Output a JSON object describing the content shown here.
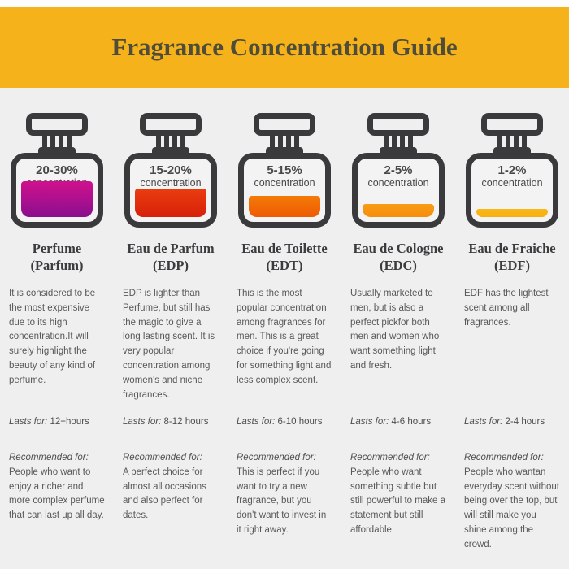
{
  "title": "Fragrance Concentration Guide",
  "theme": {
    "banner_bg": "#f5b21a",
    "banner_text": "#4f4d3a",
    "page_bg": "#efeff0",
    "bottle_outline": "#3a3a3c"
  },
  "labels": {
    "concentration": "concentration",
    "lasts_for": "Lasts for:",
    "recommended_for": "Recommended for:"
  },
  "fragrances": [
    {
      "name": "Perfume",
      "abbr": "(Parfum)",
      "concentration": "20-30%",
      "description": "It is considered to be the most expensive due to its high concentration.It will surely highlight the beauty of any kind of perfume.",
      "lasts": "12+hours",
      "recommended": "People who want to enjoy a richer and more complex perfume that can last up all day.",
      "fill_top": "#d1108d",
      "fill_bottom": "#8a0f8e",
      "fill_height": 44
    },
    {
      "name": "Eau de Parfum",
      "abbr": "(EDP)",
      "concentration": "15-20%",
      "description": "EDP is lighter than Perfume, but still has the magic to give a long lasting scent. It is very popular concentration among women's and niche fragrances.",
      "lasts": "8-12 hours",
      "recommended": "A perfect choice for almost all occasions and also perfect for dates.",
      "fill_top": "#ea3d0f",
      "fill_bottom": "#d62109",
      "fill_height": 35
    },
    {
      "name": "Eau de Toilette",
      "abbr": "(EDT)",
      "concentration": "5-15%",
      "description": "This is the most popular concentration among fragrances for men. This is a great choice if you're going for something light and less complex scent.",
      "lasts": "6-10 hours",
      "recommended": "This is perfect if you want to try a new fragrance, but you don't want to invest in it right away.",
      "fill_top": "#f57a06",
      "fill_bottom": "#ee5a05",
      "fill_height": 26
    },
    {
      "name": "Eau de Cologne",
      "abbr": "(EDC)",
      "concentration": "2-5%",
      "description": "Usually marketed to men, but is also a perfect pickfor both men and women who want something light and fresh.",
      "lasts": "4-6 hours",
      "recommended": "People who want something subtle but still powerful to make a statement but still affordable.",
      "fill_top": "#f89c12",
      "fill_bottom": "#f68d0e",
      "fill_height": 16
    },
    {
      "name": "Eau de Fraiche",
      "abbr": "(EDF)",
      "concentration": "1-2%",
      "description": "EDF has the lightest scent among all fragrances.",
      "lasts": "2-4 hours",
      "recommended": "People who wantan everyday scent without being over the top, but will still make you shine among the crowd.",
      "fill_top": "#f9b916",
      "fill_bottom": "#f8ae13",
      "fill_height": 10
    }
  ]
}
